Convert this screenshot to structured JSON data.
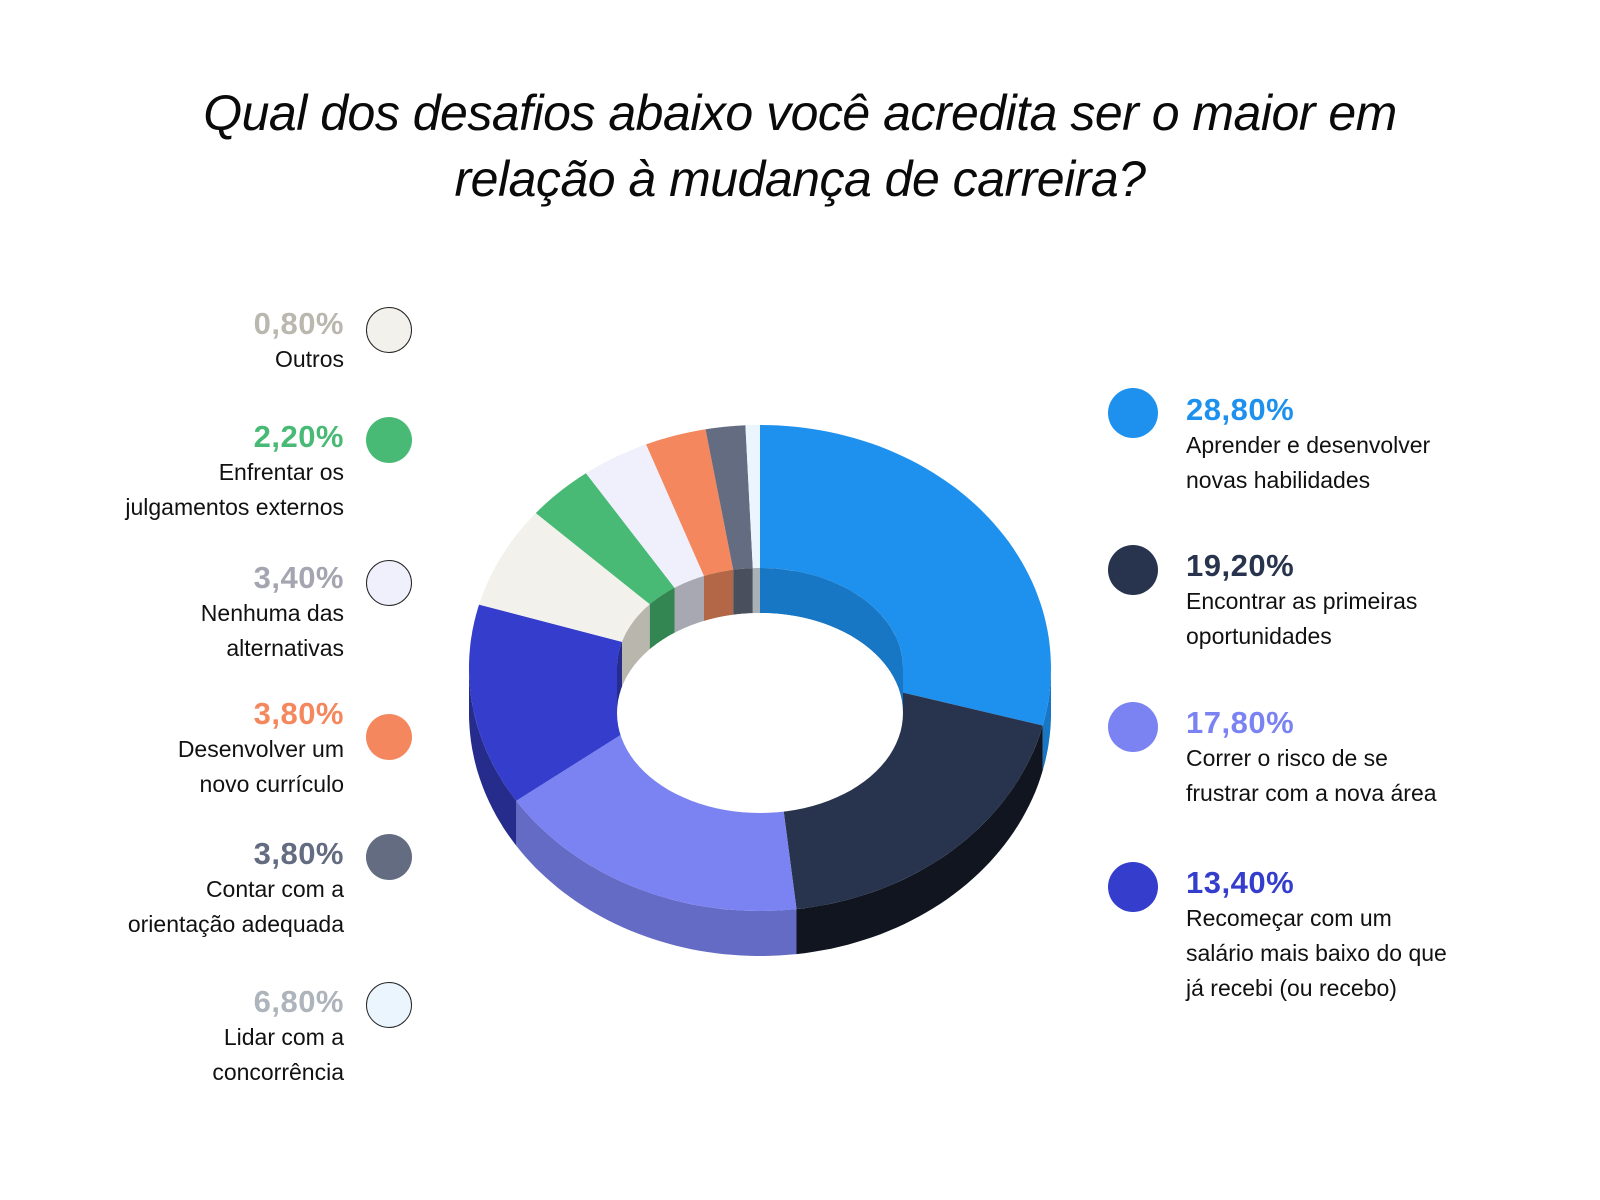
{
  "title": {
    "line1": "Qual dos desafios abaixo você acredita ser o maior em",
    "line2": "relação à mudança de carreira?"
  },
  "legend_left": [
    {
      "pct": "0,80%",
      "label": [
        "Outros"
      ],
      "color": "#f2f1ec",
      "pct_color": "#b9b7ae",
      "outlined": true
    },
    {
      "pct": "2,20%",
      "label": [
        "Enfrentar os",
        "julgamentos externos"
      ],
      "color": "#49ba75",
      "pct_color": "#49ba75",
      "outlined": false
    },
    {
      "pct": "3,40%",
      "label": [
        "Nenhuma das",
        "alternativas"
      ],
      "color": "#f0f0fc",
      "pct_color": "#a4a5b0",
      "outlined": true
    },
    {
      "pct": "3,80%",
      "label": [
        "Desenvolver um",
        "novo currículo"
      ],
      "color": "#f4875d",
      "pct_color": "#f4875d",
      "outlined": false
    },
    {
      "pct": "3,80%",
      "label": [
        "Contar com a",
        "orientação adequada"
      ],
      "color": "#646c82",
      "pct_color": "#646c82",
      "outlined": false
    },
    {
      "pct": "6,80%",
      "label": [
        "Lidar com a",
        "concorrência"
      ],
      "color": "#eaf5fd",
      "pct_color": "#adb4bb",
      "outlined": true
    }
  ],
  "legend_right": [
    {
      "pct": "28,80%",
      "label": [
        "Aprender e desenvolver",
        "novas habilidades"
      ],
      "color": "#1e91ee"
    },
    {
      "pct": "19,20%",
      "label": [
        "Encontrar as primeiras",
        "oportunidades"
      ],
      "color": "#28344e"
    },
    {
      "pct": "17,80%",
      "label": [
        "Correr o risco de se",
        "frustrar com a nova área"
      ],
      "color": "#7b83f2"
    },
    {
      "pct": "13,40%",
      "label": [
        "Recomeçar com um",
        "salário mais baixo do que",
        "já recebi (ou recebo)"
      ],
      "color": "#353ecc"
    }
  ],
  "chart_data": {
    "type": "pie",
    "variant": "3d-donut",
    "title": "Qual dos desafios abaixo você acredita ser o maior em relação à mudança de carreira?",
    "categories": [
      "Aprender e desenvolver novas habilidades",
      "Encontrar as primeiras oportunidades",
      "Correr o risco de se frustrar com a nova área",
      "Recomeçar com um salário mais baixo do que já recebi (ou recebo)",
      "Lidar com a concorrência",
      "Contar com a orientação adequada",
      "Desenvolver um novo currículo",
      "Nenhuma das alternativas",
      "Enfrentar os julgamentos externos",
      "Outros"
    ],
    "values": [
      28.8,
      19.2,
      17.8,
      13.4,
      6.8,
      3.8,
      3.8,
      3.4,
      2.2,
      0.8
    ],
    "slices_drawn_clockwise_from_top": [
      {
        "value": 28.8,
        "color": "#1e91ee",
        "side": "#1877c4"
      },
      {
        "value": 19.2,
        "color": "#28344e",
        "side": "#11151f"
      },
      {
        "value": 17.8,
        "color": "#7b83f2",
        "side": "#646bc4"
      },
      {
        "value": 13.4,
        "color": "#353ecc",
        "side": "#252c8c"
      },
      {
        "value": 6.8,
        "color": "#f2f1ec",
        "side": "#b8b6ad"
      },
      {
        "value": 3.8,
        "color": "#49ba75",
        "side": "#338552"
      },
      {
        "value": 3.8,
        "color": "#f0f0fc",
        "side": "#a7a8b1"
      },
      {
        "value": 3.4,
        "color": "#f4875d",
        "side": "#b36746"
      },
      {
        "value": 2.2,
        "color": "#646c82",
        "side": "#4a4f5d"
      },
      {
        "value": 0.8,
        "color": "#eaf5fd",
        "side": "#a9b0b6"
      }
    ],
    "legend_position": "left and right",
    "unit": "%"
  }
}
